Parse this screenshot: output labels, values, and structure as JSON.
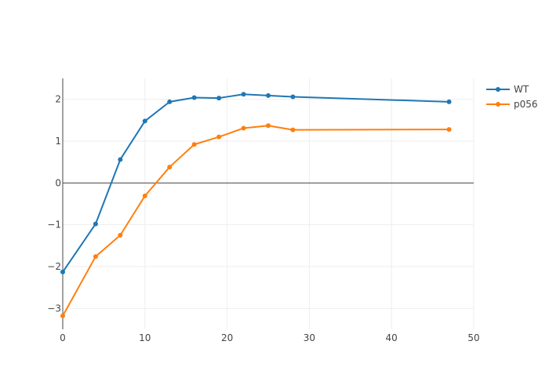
{
  "chart_data": {
    "type": "line",
    "title": "",
    "xlabel": "",
    "ylabel": "",
    "xlim": [
      0,
      50
    ],
    "ylim": [
      -3.5,
      2.5
    ],
    "x_ticks": [
      0,
      10,
      20,
      30,
      40,
      50
    ],
    "y_ticks": [
      -3,
      -2,
      -1,
      0,
      1,
      2
    ],
    "x_tick_labels": [
      "0",
      "10",
      "20",
      "30",
      "40",
      "50"
    ],
    "y_tick_labels": [
      "−3",
      "−2",
      "−1",
      "0",
      "1",
      "2"
    ],
    "grid": true,
    "zero_lines": true,
    "legend_position": "top-right",
    "series": [
      {
        "name": "WT",
        "color": "#1f77b4",
        "x": [
          0,
          4,
          7,
          10,
          13,
          16,
          19,
          22,
          25,
          28,
          47
        ],
        "y": [
          -2.13,
          -0.98,
          0.56,
          1.48,
          1.94,
          2.04,
          2.03,
          2.12,
          2.09,
          2.06,
          1.94
        ]
      },
      {
        "name": "p056",
        "color": "#ff7f0e",
        "x": [
          0,
          4,
          7,
          10,
          13,
          16,
          19,
          22,
          25,
          28,
          47
        ],
        "y": [
          -3.18,
          -1.76,
          -1.25,
          -0.31,
          0.38,
          0.92,
          1.1,
          1.31,
          1.37,
          1.27,
          1.28
        ]
      }
    ]
  }
}
